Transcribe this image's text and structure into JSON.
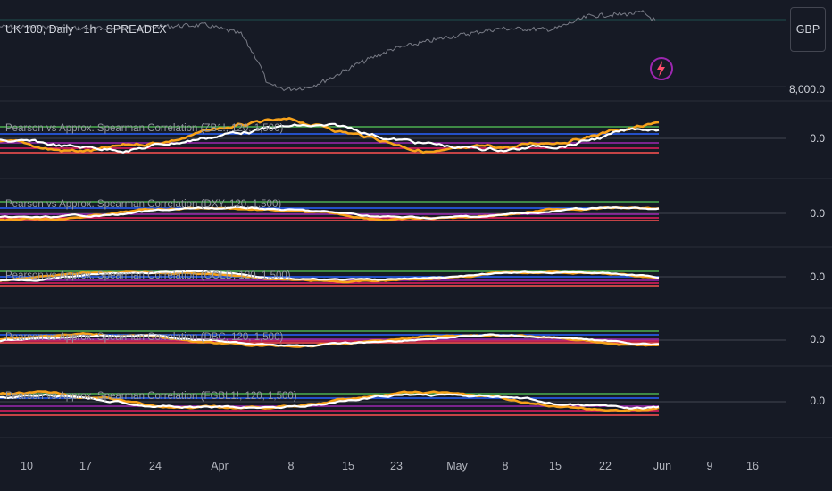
{
  "header": {
    "symbol_title": "UK 100, Daily · 1h · SPREADEX",
    "currency_button": "GBP"
  },
  "price_axis": {
    "main_label": "8,000.0"
  },
  "panes": [
    {
      "title": "Pearson vs Approx. Spearman Correlation (ZB1!, 120, 1,500)",
      "zero_label": "0.0"
    },
    {
      "title": "Pearson vs Approx. Spearman Correlation (DXY, 120, 1,500)",
      "zero_label": "0.0"
    },
    {
      "title": "Pearson vs Approx. Spearman Correlation (GOLD, 120, 1,500)",
      "zero_label": "0.0"
    },
    {
      "title": "Pearson vs Approx. Spearman Correlation (DBC, 120, 1,500)",
      "zero_label": "0.0"
    },
    {
      "title": "Pearson vs Approx. Spearman Correlation (FGBL1!, 120, 1,500)",
      "zero_label": "0.0"
    }
  ],
  "time_axis": {
    "labels": [
      "10",
      "17",
      "24",
      "Apr",
      "8",
      "15",
      "23",
      "May",
      "8",
      "15",
      "22",
      "Jun",
      "9",
      "16"
    ]
  },
  "icons": {
    "alert_icon": "lightning-bolt-icon"
  },
  "colors": {
    "background": "#161a25",
    "price_line": "#787b86",
    "pearson": "#ffffff",
    "spearman": "#f7a21b",
    "upper_band": "#4caf50",
    "mid_band": "#2962ff",
    "lower_band": "#e91e63",
    "lower_band2": "#ff5252",
    "purple_band": "#9c27b0"
  }
}
